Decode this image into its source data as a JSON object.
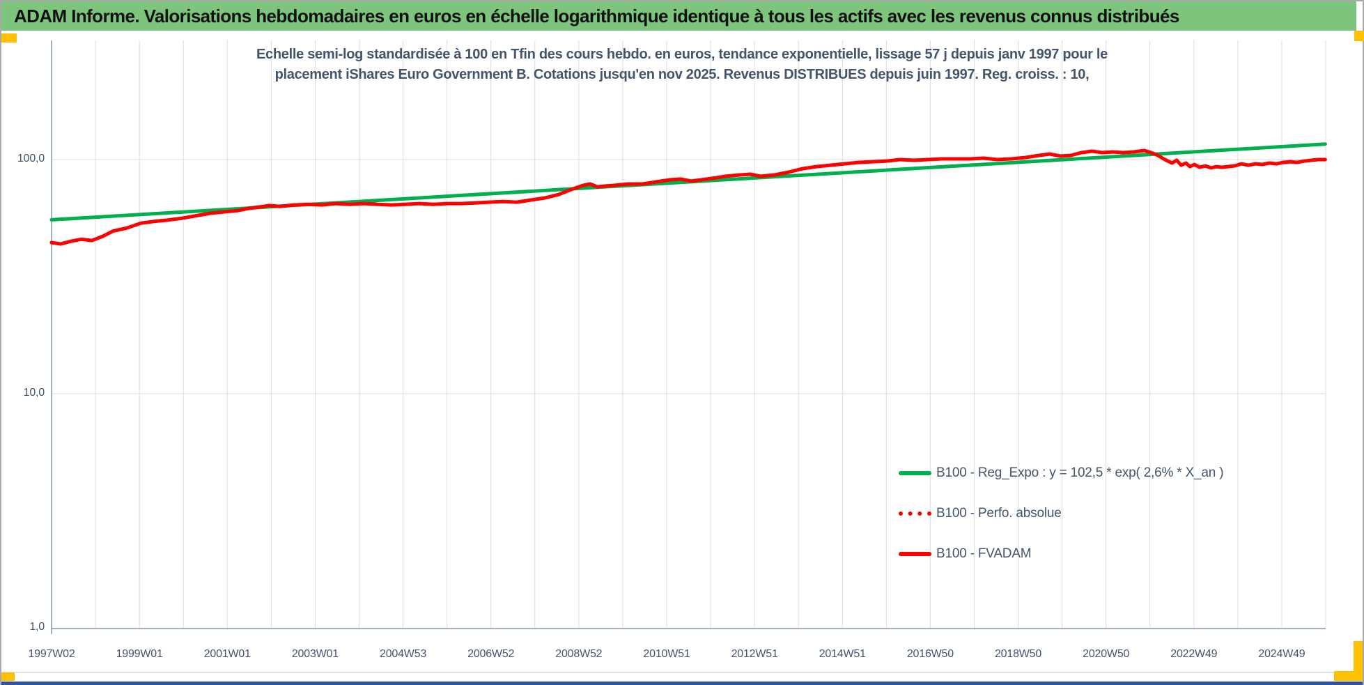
{
  "header": {
    "title": "ADAM Informe. Valorisations hebdomadaires en euros en échelle logarithmique identique à tous les actifs avec les revenus connus distribués"
  },
  "colors": {
    "header-green": "#7DC47D",
    "text-blue": "#44546A",
    "grid": "#DCDCDC",
    "axis": "#8496B0",
    "series-green": "#00B050",
    "series-red": "#FF0000",
    "orange": "#FFC000",
    "bottom-strip": "#2E5597"
  },
  "chart_data": {
    "type": "line",
    "y_scale": "log",
    "title": "Echelle semi-log standardisée à 100 en Tfin des cours hebdo. en euros, tendance exponentielle, lissage 57 j depuis janv 1997 pour le placement iShares Euro Government B. Cotations jusqu'en nov 2025. Revenus DISTRIBUES depuis juin 1997. Reg. croiss. : 10,",
    "title_line1": "Echelle semi-log standardisée à 100 en Tfin des cours hebdo. en euros, tendance exponentielle, lissage 57 j depuis janv 1997 pour le",
    "title_line2": "placement iShares Euro Government B. Cotations jusqu'en nov 2025. Revenus DISTRIBUES depuis juin 1997. Reg. croiss. : 10,",
    "xlabel": "",
    "ylabel": "",
    "ylim": [
      1.0,
      300
    ],
    "x_range_years": [
      1997.0,
      2026.0
    ],
    "grid": "vertical yearly, horizontal per decade",
    "legend_position": "inside bottom-right",
    "x_ticks": [
      "1997W02",
      "1999W01",
      "2001W01",
      "2003W01",
      "2004W53",
      "2006W52",
      "2008W52",
      "2010W51",
      "2012W51",
      "2014W51",
      "2016W50",
      "2018W50",
      "2020W50",
      "2022W49",
      "2024W49"
    ],
    "y_ticks": [
      {
        "label": "100,0",
        "value": 100
      },
      {
        "label": "10,0",
        "value": 10
      },
      {
        "label": "1,0",
        "value": 1
      }
    ],
    "series": [
      {
        "name": "B100 - Reg_Expo : y = 102,5 * exp( 2,6% *  X_an )",
        "color": "#00B050",
        "line_style": "solid",
        "width": 5,
        "points": [
          [
            1997.0,
            55.3
          ],
          [
            2025.99,
            116.5
          ]
        ]
      },
      {
        "name": "B100 - Perfo. absolue",
        "color": "#FF0000",
        "line_style": "dotted",
        "width": 5,
        "points_ref": "B100 - FVADAM",
        "note": "coincides with B100 - FVADAM in the plot"
      },
      {
        "name": "B100 - FVADAM",
        "color": "#FF0000",
        "line_style": "solid",
        "width": 5,
        "points": [
          [
            1997.0,
            44.2
          ],
          [
            1997.21,
            43.6
          ],
          [
            1997.44,
            44.8
          ],
          [
            1997.68,
            45.7
          ],
          [
            1997.92,
            45.1
          ],
          [
            1998.16,
            47.0
          ],
          [
            1998.4,
            49.5
          ],
          [
            1998.71,
            51.0
          ],
          [
            1999.03,
            53.5
          ],
          [
            1999.35,
            54.5
          ],
          [
            1999.66,
            55.2
          ],
          [
            1999.98,
            56.2
          ],
          [
            2000.3,
            57.6
          ],
          [
            2000.62,
            59.0
          ],
          [
            2000.93,
            59.8
          ],
          [
            2001.25,
            60.6
          ],
          [
            2001.49,
            61.9
          ],
          [
            2001.72,
            62.7
          ],
          [
            2001.96,
            63.6
          ],
          [
            2002.2,
            63.1
          ],
          [
            2002.52,
            64.0
          ],
          [
            2002.83,
            64.4
          ],
          [
            2003.15,
            64.0
          ],
          [
            2003.47,
            64.9
          ],
          [
            2003.79,
            64.4
          ],
          [
            2004.1,
            64.9
          ],
          [
            2004.42,
            64.4
          ],
          [
            2004.74,
            64.0
          ],
          [
            2005.05,
            64.4
          ],
          [
            2005.37,
            64.9
          ],
          [
            2005.69,
            64.4
          ],
          [
            2006.01,
            64.9
          ],
          [
            2006.32,
            64.9
          ],
          [
            2006.64,
            65.3
          ],
          [
            2006.96,
            65.8
          ],
          [
            2007.27,
            66.2
          ],
          [
            2007.59,
            65.8
          ],
          [
            2007.91,
            67.2
          ],
          [
            2008.23,
            68.6
          ],
          [
            2008.54,
            70.9
          ],
          [
            2008.86,
            74.9
          ],
          [
            2009.1,
            77.6
          ],
          [
            2009.26,
            78.7
          ],
          [
            2009.42,
            76.5
          ],
          [
            2009.57,
            77.0
          ],
          [
            2009.81,
            77.6
          ],
          [
            2010.13,
            78.7
          ],
          [
            2010.45,
            78.7
          ],
          [
            2010.76,
            80.3
          ],
          [
            2011.08,
            82.0
          ],
          [
            2011.32,
            82.6
          ],
          [
            2011.56,
            80.9
          ],
          [
            2011.79,
            82.0
          ],
          [
            2012.03,
            83.1
          ],
          [
            2012.35,
            84.9
          ],
          [
            2012.67,
            86.0
          ],
          [
            2012.9,
            86.6
          ],
          [
            2013.14,
            84.9
          ],
          [
            2013.46,
            86.0
          ],
          [
            2013.78,
            88.4
          ],
          [
            2014.09,
            91.4
          ],
          [
            2014.41,
            93.3
          ],
          [
            2014.73,
            94.6
          ],
          [
            2015.04,
            95.9
          ],
          [
            2015.36,
            97.2
          ],
          [
            2015.68,
            97.9
          ],
          [
            2016.0,
            98.5
          ],
          [
            2016.31,
            100.0
          ],
          [
            2016.63,
            99.3
          ],
          [
            2016.95,
            100.0
          ],
          [
            2017.26,
            100.7
          ],
          [
            2017.58,
            100.7
          ],
          [
            2017.9,
            100.7
          ],
          [
            2018.22,
            101.4
          ],
          [
            2018.53,
            100.0
          ],
          [
            2018.85,
            100.7
          ],
          [
            2019.17,
            102.1
          ],
          [
            2019.48,
            104.2
          ],
          [
            2019.72,
            105.6
          ],
          [
            2019.96,
            103.5
          ],
          [
            2020.2,
            104.2
          ],
          [
            2020.44,
            107.1
          ],
          [
            2020.68,
            108.6
          ],
          [
            2020.91,
            107.1
          ],
          [
            2021.15,
            107.8
          ],
          [
            2021.39,
            107.1
          ],
          [
            2021.63,
            107.8
          ],
          [
            2021.87,
            109.3
          ],
          [
            2022.03,
            107.1
          ],
          [
            2022.18,
            104.2
          ],
          [
            2022.34,
            100.0
          ],
          [
            2022.5,
            96.6
          ],
          [
            2022.61,
            99.3
          ],
          [
            2022.71,
            94.6
          ],
          [
            2022.82,
            96.6
          ],
          [
            2022.91,
            93.3
          ],
          [
            2023.01,
            95.3
          ],
          [
            2023.13,
            92.7
          ],
          [
            2023.26,
            94.0
          ],
          [
            2023.39,
            92.1
          ],
          [
            2023.51,
            93.3
          ],
          [
            2023.64,
            92.7
          ],
          [
            2023.77,
            93.3
          ],
          [
            2023.93,
            94.0
          ],
          [
            2024.08,
            95.9
          ],
          [
            2024.24,
            94.6
          ],
          [
            2024.4,
            95.9
          ],
          [
            2024.56,
            95.3
          ],
          [
            2024.72,
            96.6
          ],
          [
            2024.88,
            95.9
          ],
          [
            2025.03,
            97.2
          ],
          [
            2025.19,
            97.9
          ],
          [
            2025.35,
            97.2
          ],
          [
            2025.51,
            98.5
          ],
          [
            2025.67,
            99.3
          ],
          [
            2025.83,
            100.0
          ],
          [
            2025.99,
            100.0
          ]
        ]
      }
    ]
  }
}
